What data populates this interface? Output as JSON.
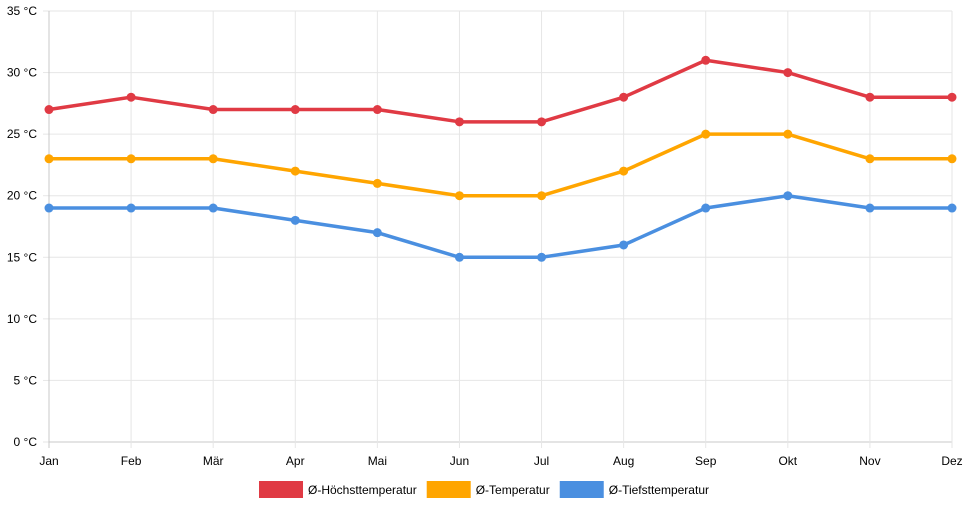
{
  "chart_data": {
    "type": "line",
    "categories": [
      "Jan",
      "Feb",
      "Mär",
      "Apr",
      "Mai",
      "Jun",
      "Jul",
      "Aug",
      "Sep",
      "Okt",
      "Nov",
      "Dez"
    ],
    "y_ticks": [
      "0 °C",
      "5 °C",
      "10 °C",
      "15 °C",
      "20 °C",
      "25 °C",
      "30 °C",
      "35 °C"
    ],
    "ylim": [
      0,
      35
    ],
    "grid": true,
    "legend_position": "bottom",
    "series": [
      {
        "name": "Ø-Höchsttemperatur",
        "color": "#e03a44",
        "values": [
          27,
          28,
          27,
          27,
          27,
          26,
          26,
          28,
          31,
          30,
          28,
          28
        ]
      },
      {
        "name": "Ø-Temperatur",
        "color": "#ffa500",
        "values": [
          23,
          23,
          23,
          22,
          21,
          20,
          20,
          22,
          25,
          25,
          23,
          23
        ]
      },
      {
        "name": "Ø-Tiefsttemperatur",
        "color": "#4a8fe0",
        "values": [
          19,
          19,
          19,
          18,
          17,
          15,
          15,
          16,
          19,
          20,
          19,
          19
        ]
      }
    ]
  }
}
